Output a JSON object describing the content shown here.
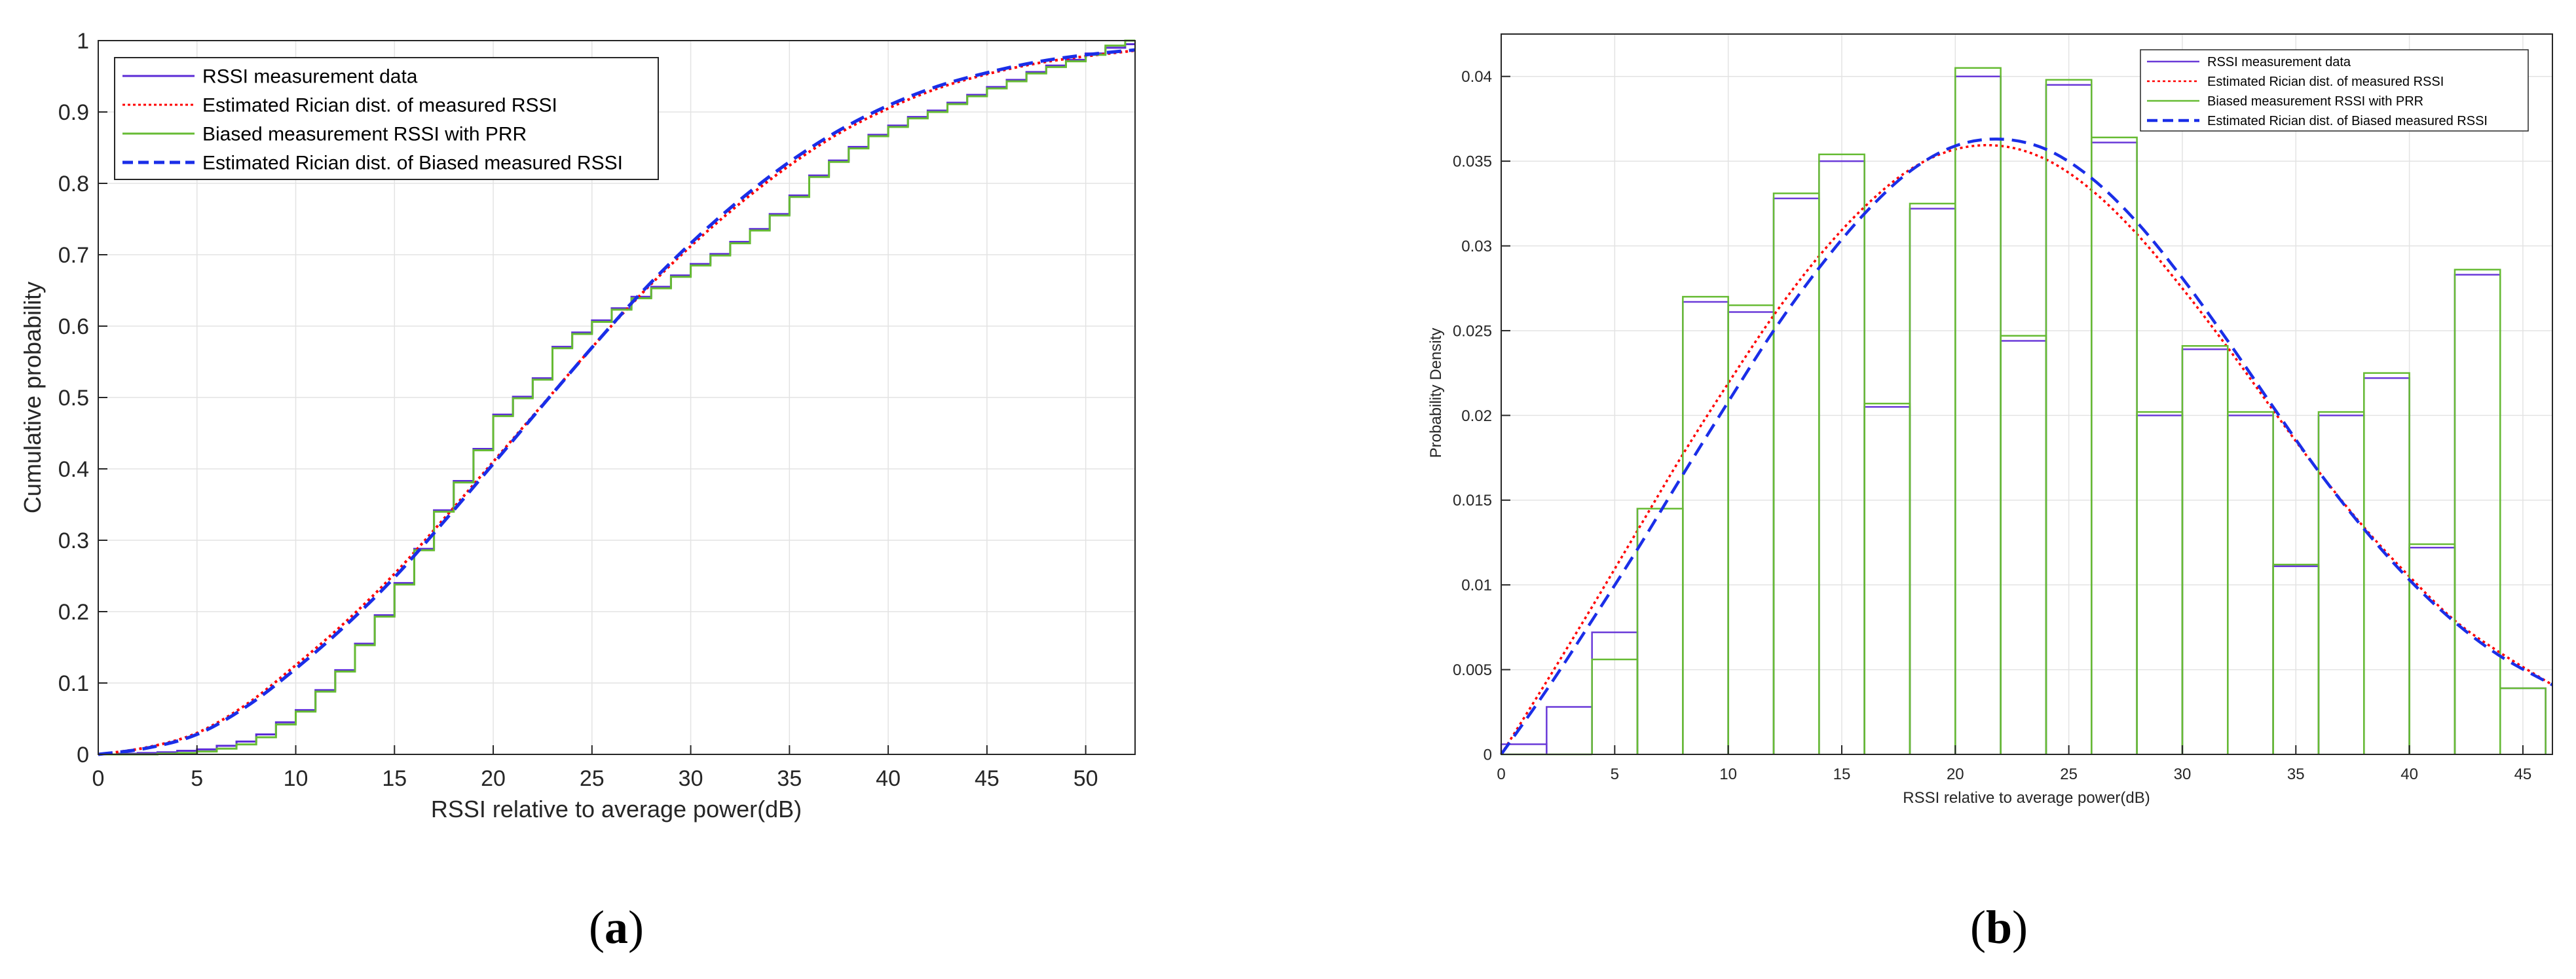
{
  "captions": {
    "a": "a",
    "b": "b"
  },
  "chart_data": [
    {
      "panel": "a",
      "type": "line",
      "xlabel": "RSSI relative to average power(dB)",
      "ylabel": "Cumulative probability",
      "xlim": [
        0,
        52.5
      ],
      "ylim": [
        0,
        1
      ],
      "xticks": [
        0,
        5,
        10,
        15,
        20,
        25,
        30,
        35,
        40,
        45,
        50
      ],
      "yticks": [
        0,
        0.1,
        0.2,
        0.3,
        0.4,
        0.5,
        0.6,
        0.7,
        0.8,
        0.9,
        1
      ],
      "grid": true,
      "legend_position": "top-left",
      "series": [
        {
          "name": "RSSI measurement data",
          "style": "stairs",
          "color": "#5b2bd6",
          "x": [
            0,
            1,
            2,
            3,
            4,
            5,
            6,
            7,
            8,
            9,
            10,
            11,
            12,
            13,
            14,
            15,
            16,
            17,
            18,
            19,
            20,
            21,
            22,
            23,
            24,
            25,
            26,
            27,
            28,
            29,
            30,
            31,
            32,
            33,
            34,
            35,
            36,
            37,
            38,
            39,
            40,
            41,
            42,
            43,
            44,
            45,
            46,
            47,
            48,
            49,
            50,
            51,
            52,
            52.5
          ],
          "y": [
            0,
            0.001,
            0.002,
            0.003,
            0.005,
            0.007,
            0.012,
            0.018,
            0.028,
            0.045,
            0.062,
            0.09,
            0.118,
            0.155,
            0.195,
            0.24,
            0.288,
            0.342,
            0.383,
            0.428,
            0.476,
            0.501,
            0.527,
            0.571,
            0.591,
            0.608,
            0.625,
            0.641,
            0.655,
            0.671,
            0.687,
            0.701,
            0.718,
            0.736,
            0.757,
            0.783,
            0.811,
            0.832,
            0.851,
            0.868,
            0.881,
            0.893,
            0.902,
            0.913,
            0.924,
            0.935,
            0.945,
            0.956,
            0.965,
            0.973,
            0.982,
            0.99,
            0.995,
            0.995
          ]
        },
        {
          "name": "Estimated Rician dist. of measured RSSI",
          "style": "dotted",
          "color": "#ff0000",
          "x": [
            0,
            2.5,
            5,
            7.5,
            10,
            12.5,
            15,
            17.5,
            20,
            22.5,
            25,
            27.5,
            30,
            32.5,
            35,
            37.5,
            40,
            42.5,
            45,
            47.5,
            50,
            52.5
          ],
          "y": [
            0,
            0.01,
            0.03,
            0.07,
            0.125,
            0.185,
            0.253,
            0.33,
            0.41,
            0.49,
            0.57,
            0.645,
            0.712,
            0.772,
            0.825,
            0.87,
            0.905,
            0.933,
            0.953,
            0.968,
            0.978,
            0.986
          ]
        },
        {
          "name": "Biased measurement RSSI with PRR",
          "style": "stairs",
          "color": "#66bb33",
          "x": [
            0,
            1,
            2,
            3,
            4,
            5,
            6,
            7,
            8,
            9,
            10,
            11,
            12,
            13,
            14,
            15,
            16,
            17,
            18,
            19,
            20,
            21,
            22,
            23,
            24,
            25,
            26,
            27,
            28,
            29,
            30,
            31,
            32,
            33,
            34,
            35,
            36,
            37,
            38,
            39,
            40,
            41,
            42,
            43,
            44,
            45,
            46,
            47,
            48,
            49,
            50,
            51,
            52,
            52.5
          ],
          "y": [
            0,
            0,
            0,
            0.001,
            0.002,
            0.004,
            0.008,
            0.014,
            0.024,
            0.042,
            0.06,
            0.088,
            0.116,
            0.153,
            0.193,
            0.238,
            0.286,
            0.34,
            0.381,
            0.426,
            0.474,
            0.499,
            0.525,
            0.569,
            0.589,
            0.606,
            0.623,
            0.639,
            0.653,
            0.669,
            0.685,
            0.699,
            0.716,
            0.734,
            0.755,
            0.781,
            0.809,
            0.83,
            0.849,
            0.866,
            0.879,
            0.891,
            0.9,
            0.911,
            0.922,
            0.933,
            0.943,
            0.954,
            0.963,
            0.971,
            0.98,
            0.993,
            1,
            1
          ]
        },
        {
          "name": "Estimated Rician dist. of Biased measured RSSI",
          "style": "dashed",
          "color": "#1a2ee8",
          "x": [
            0,
            2.5,
            5,
            7.5,
            10,
            12.5,
            15,
            17.5,
            20,
            22.5,
            25,
            27.5,
            30,
            32.5,
            35,
            37.5,
            40,
            42.5,
            45,
            47.5,
            50,
            52.5
          ],
          "y": [
            0,
            0.009,
            0.028,
            0.067,
            0.12,
            0.18,
            0.248,
            0.326,
            0.407,
            0.489,
            0.57,
            0.647,
            0.716,
            0.777,
            0.83,
            0.874,
            0.909,
            0.936,
            0.955,
            0.97,
            0.98,
            0.987
          ]
        }
      ]
    },
    {
      "panel": "b",
      "type": "bar",
      "xlabel": "RSSI relative to average power(dB)",
      "ylabel": "Probability Density",
      "xlim": [
        0,
        46.3
      ],
      "ylim": [
        0,
        0.0425
      ],
      "xticks": [
        0,
        5,
        10,
        15,
        20,
        25,
        30,
        35,
        40,
        45
      ],
      "yticks": [
        0,
        0.005,
        0.01,
        0.015,
        0.02,
        0.025,
        0.03,
        0.035,
        0.04
      ],
      "ytick_labels": [
        "0",
        "0.005",
        "0.01",
        "0.015",
        "0.02",
        "0.025",
        "0.03",
        "0.035",
        "0.04"
      ],
      "grid": true,
      "legend_position": "top-right",
      "bin_edges": [
        0,
        2,
        4,
        6,
        8,
        10,
        12,
        14,
        16,
        18,
        20,
        22,
        24,
        26,
        28,
        30,
        32,
        34,
        36,
        38,
        40,
        42,
        44,
        46
      ],
      "series": [
        {
          "name": "RSSI measurement data",
          "style": "histogram",
          "color": "#6a3ad8",
          "values": [
            0.0006,
            0.0028,
            0.0072,
            0.0145,
            0.0267,
            0.0261,
            0.0328,
            0.035,
            0.0205,
            0.0322,
            0.04,
            0.0244,
            0.0395,
            0.0361,
            0.02,
            0.0239,
            0.02,
            0.0111,
            0.02,
            0.0222,
            0.0122,
            0.0283,
            0.0039
          ]
        },
        {
          "name": "Estimated Rician dist. of measured RSSI",
          "style": "dotted",
          "color": "#ff0000",
          "x": [
            0,
            2,
            4,
            6,
            8,
            10,
            12,
            14,
            16,
            18,
            20,
            22,
            24,
            26,
            28,
            30,
            32,
            34,
            36,
            38,
            40,
            42,
            44,
            46.3
          ],
          "y": [
            0,
            0.0043,
            0.0087,
            0.0132,
            0.0177,
            0.0219,
            0.0259,
            0.0294,
            0.0323,
            0.0345,
            0.0357,
            0.0359,
            0.0351,
            0.0333,
            0.0307,
            0.0275,
            0.024,
            0.0203,
            0.0167,
            0.0134,
            0.0105,
            0.0079,
            0.006,
            0.0041
          ]
        },
        {
          "name": "Biased measurement RSSI with PRR",
          "style": "histogram",
          "color": "#66bb33",
          "values": [
            0,
            0,
            0.0056,
            0.0145,
            0.027,
            0.0265,
            0.0331,
            0.0354,
            0.0207,
            0.0325,
            0.0405,
            0.0247,
            0.0398,
            0.0364,
            0.0202,
            0.0241,
            0.0202,
            0.0112,
            0.0202,
            0.0225,
            0.0124,
            0.0286,
            0.0039
          ]
        },
        {
          "name": "Estimated Rician dist. of Biased measured RSSI",
          "style": "dashed",
          "color": "#1a2ee8",
          "x": [
            0,
            2,
            4,
            6,
            8,
            10,
            12,
            14,
            16,
            18,
            20,
            22,
            24,
            26,
            28,
            30,
            32,
            34,
            36,
            38,
            40,
            42,
            44,
            46.3
          ],
          "y": [
            0,
            0.0038,
            0.0079,
            0.0121,
            0.0165,
            0.0208,
            0.025,
            0.0287,
            0.0319,
            0.0344,
            0.0359,
            0.0363,
            0.0357,
            0.034,
            0.0314,
            0.0281,
            0.0244,
            0.0205,
            0.0167,
            0.0133,
            0.0103,
            0.0078,
            0.0058,
            0.0041
          ]
        }
      ]
    }
  ]
}
